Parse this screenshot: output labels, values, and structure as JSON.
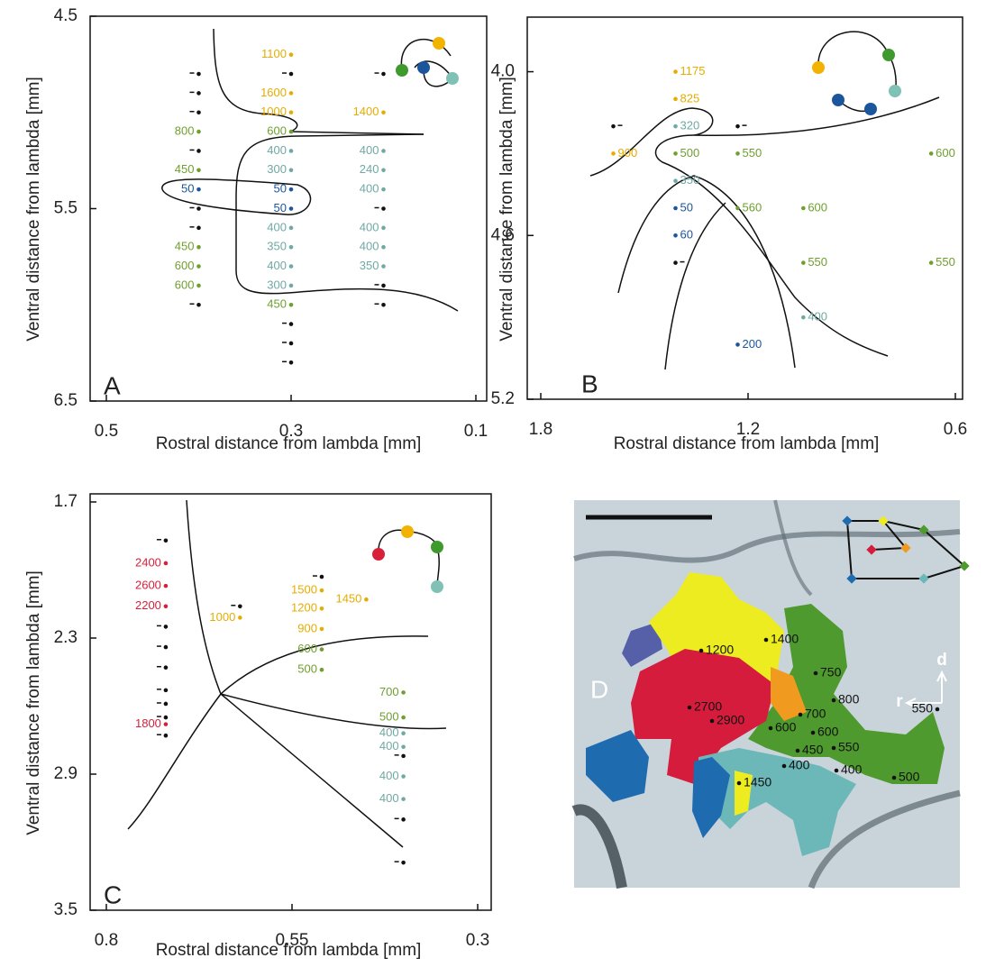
{
  "chart_data": [
    {
      "type": "scatter",
      "panel": "A",
      "xlabel": "Rostral distance from lambda [mm]",
      "ylabel": "Ventral distance from lambda [mm]",
      "xlim": [
        0.5,
        0.1
      ],
      "ylim": [
        4.5,
        6.5
      ],
      "xticks": [
        0.5,
        0.3,
        0.1
      ],
      "yticks": [
        4.5,
        5.5,
        6.5
      ],
      "series": [
        {
          "color": "#e6ac00",
          "x": [
            0.3,
            0.3,
            0.3,
            0.2
          ],
          "values": [
            4.7,
            4.9,
            5.0,
            5.0
          ],
          "latencies": [
            1100,
            1600,
            1000,
            1400
          ]
        },
        {
          "color": "#6f9f2e",
          "x": [
            0.4,
            0.3,
            0.4,
            0.4,
            0.4,
            0.4,
            0.3
          ],
          "values": [
            5.1,
            5.1,
            5.3,
            5.7,
            5.8,
            5.9,
            6.0
          ],
          "latencies": [
            800,
            600,
            450,
            450,
            600,
            600,
            450
          ]
        },
        {
          "color": "#6fa9a3",
          "x": [
            0.3,
            0.2,
            0.3,
            0.2,
            0.2,
            0.3,
            0.2,
            0.3,
            0.2,
            0.3,
            0.2,
            0.3
          ],
          "values": [
            5.2,
            5.2,
            5.3,
            5.3,
            5.4,
            5.6,
            5.6,
            5.7,
            5.7,
            5.8,
            5.8,
            5.9
          ],
          "latencies": [
            400,
            400,
            300,
            240,
            400,
            400,
            400,
            350,
            400,
            400,
            350,
            300
          ]
        },
        {
          "color": "#1b559b",
          "x": [
            0.4,
            0.3,
            0.3
          ],
          "values": [
            5.4,
            5.4,
            5.5
          ],
          "latencies": [
            50,
            50,
            50
          ]
        },
        {
          "color": "#111111",
          "x": [
            0.4,
            0.3,
            0.2,
            0.4,
            0.4,
            0.4,
            0.4,
            0.2,
            0.4,
            0.2,
            0.4,
            0.2,
            0.3,
            0.3,
            0.3
          ],
          "values": [
            4.8,
            4.8,
            4.8,
            4.9,
            5.0,
            5.2,
            5.5,
            5.5,
            5.6,
            5.9,
            6.0,
            6.0,
            6.1,
            6.2,
            6.3
          ]
        }
      ]
    },
    {
      "type": "scatter",
      "panel": "B",
      "xlabel": "Rostral distance from lambda [mm]",
      "ylabel": "Ventral distance from lambda [mm]",
      "xlim": [
        1.8,
        0.6
      ],
      "ylim": [
        3.8,
        5.2
      ],
      "xticks": [
        1.8,
        1.2,
        0.6
      ],
      "yticks": [
        {
          "value": 4,
          "label": "4.0"
        },
        4.6,
        5.2
      ],
      "series": [
        {
          "color": "#e6ac00",
          "x": [
            1.41,
            1.41,
            1.59
          ],
          "values": [
            4.0,
            4.1,
            4.3
          ],
          "latencies": [
            1175,
            825,
            900
          ]
        },
        {
          "color": "#6fa9a3",
          "x": [
            1.41,
            1.41,
            1.04
          ],
          "values": [
            4.2,
            4.4,
            4.9
          ],
          "latencies": [
            320,
            350,
            400
          ]
        },
        {
          "color": "#6f9f2e",
          "x": [
            1.41,
            1.23,
            0.67,
            1.23,
            1.04,
            1.04,
            0.67
          ],
          "values": [
            4.3,
            4.3,
            4.3,
            4.5,
            4.5,
            4.7,
            4.7
          ],
          "latencies": [
            500,
            550,
            600,
            560,
            600,
            550,
            550
          ]
        },
        {
          "color": "#1b559b",
          "x": [
            1.41,
            1.41,
            1.23
          ],
          "values": [
            4.5,
            4.6,
            5.0
          ],
          "latencies": [
            50,
            60,
            200
          ]
        },
        {
          "color": "#111111",
          "x": [
            1.59,
            1.23,
            1.41
          ],
          "values": [
            4.2,
            4.2,
            4.7
          ]
        }
      ]
    },
    {
      "type": "scatter",
      "panel": "C",
      "xlabel": "Rostral distance from lambda [mm]",
      "ylabel": "Ventral distance from lambda [mm]",
      "xlim": [
        0.8,
        0.3
      ],
      "ylim": [
        1.7,
        3.5
      ],
      "xticks": [
        0.8,
        0.55,
        0.3
      ],
      "yticks": [
        1.7,
        2.3,
        2.9,
        3.5
      ],
      "series": [
        {
          "color": "#d8203a",
          "x": [
            0.72,
            0.72,
            0.72,
            0.72
          ],
          "values": [
            1.97,
            2.07,
            2.16,
            2.68
          ],
          "latencies": [
            2400,
            2600,
            2200,
            1800
          ]
        },
        {
          "color": "#e6ac00",
          "x": [
            0.62,
            0.51,
            0.45,
            0.51,
            0.51
          ],
          "values": [
            2.21,
            2.09,
            2.13,
            2.17,
            2.26
          ],
          "latencies": [
            1000,
            1500,
            1450,
            1200,
            900
          ]
        },
        {
          "color": "#6f9f2e",
          "x": [
            0.51,
            0.51,
            0.4,
            0.4
          ],
          "values": [
            2.35,
            2.44,
            2.54,
            2.65
          ],
          "latencies": [
            600,
            500,
            700,
            500
          ]
        },
        {
          "color": "#6fa9a3",
          "x": [
            0.4,
            0.4,
            0.4,
            0.4
          ],
          "values": [
            2.72,
            2.78,
            2.91,
            3.01
          ],
          "latencies": [
            400,
            400,
            400,
            400
          ]
        },
        {
          "color": "#111111",
          "x": [
            0.72,
            0.72,
            0.72,
            0.72,
            0.72,
            0.72,
            0.72,
            0.72,
            0.62,
            0.51,
            0.4,
            0.4,
            0.4
          ],
          "values": [
            1.87,
            2.25,
            2.34,
            2.43,
            2.53,
            2.59,
            2.65,
            2.73,
            2.16,
            2.03,
            2.82,
            3.1,
            3.29
          ]
        }
      ]
    }
  ],
  "panel_d": {
    "panel": "D",
    "dorsal": "d",
    "rostral": "r",
    "latencies": [
      1200,
      1400,
      750,
      800,
      2700,
      700,
      2900,
      600,
      600,
      550,
      450,
      550,
      400,
      400,
      1450,
      500
    ]
  }
}
